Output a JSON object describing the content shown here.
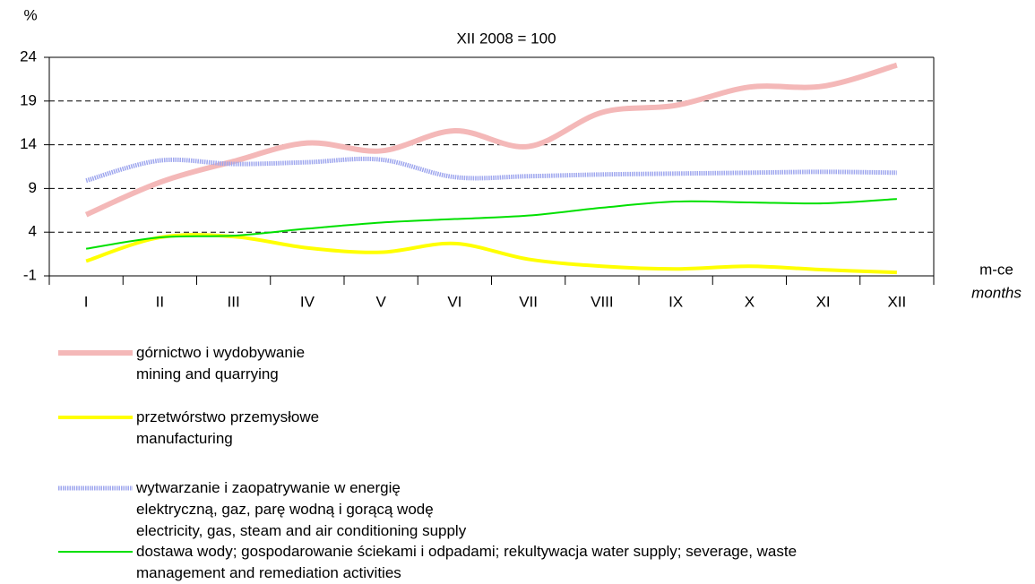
{
  "chart_data": {
    "type": "line",
    "y_unit": "%",
    "subtitle": "XII 2008 = 100",
    "x_label": "m-ce",
    "x_label_en": "months",
    "categories": [
      "I",
      "II",
      "III",
      "IV",
      "V",
      "VI",
      "VII",
      "VIII",
      "IX",
      "X",
      "XI",
      "XII"
    ],
    "ylim": [
      -1,
      24
    ],
    "yticks": [
      -1,
      4,
      9,
      14,
      19,
      24
    ],
    "grid": true,
    "series": [
      {
        "name": "górnictwo i wydobywanie\nmining and quarrying",
        "color": "#f4b8b8",
        "values": [
          6.0,
          9.7,
          12.1,
          14.2,
          13.3,
          15.6,
          13.8,
          17.7,
          18.5,
          20.6,
          20.7,
          23.1
        ]
      },
      {
        "name": "przetwórstwo przemysłowe\nmanufacturing",
        "color": "#ffff00",
        "values": [
          0.7,
          3.4,
          3.5,
          2.2,
          1.7,
          2.7,
          0.9,
          0.1,
          -0.2,
          0.1,
          -0.3,
          -0.6
        ]
      },
      {
        "name": "wytwarzanie i zaopatrywanie w energię\nelektryczną, gaz, parę wodną i gorącą wodę\nelectricity, gas, steam and air conditioning supply",
        "color": "#9ea6ee",
        "values": [
          9.9,
          12.2,
          11.8,
          12.0,
          12.3,
          10.3,
          10.4,
          10.6,
          10.7,
          10.8,
          10.9,
          10.8
        ]
      },
      {
        "name": "dostawa wody; gospodarowanie ściekami i odpadami; rekultywacja water supply; severage, waste\nmanagement and remediation activities",
        "color": "#00e000",
        "values": [
          2.1,
          3.4,
          3.6,
          4.4,
          5.1,
          5.5,
          5.9,
          6.8,
          7.5,
          7.4,
          7.3,
          7.8
        ]
      }
    ]
  }
}
